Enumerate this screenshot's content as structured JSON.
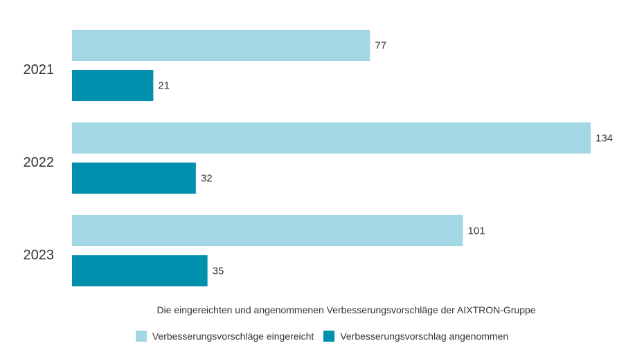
{
  "chart_data": {
    "type": "bar",
    "orientation": "horizontal",
    "categories": [
      "2021",
      "2022",
      "2023"
    ],
    "series": [
      {
        "name": "Verbesserungsvorschläge eingereicht",
        "values": [
          77,
          134,
          101
        ],
        "color": "#a3d7e3"
      },
      {
        "name": "Verbesserungsvorschlag angenommen",
        "values": [
          21,
          32,
          35
        ],
        "color": "#0090ad"
      }
    ],
    "title": "Die eingereichten und angenommenen Verbesserungsvorschläge der AIXTRON-Gruppe",
    "xlabel": "",
    "ylabel": "",
    "xlim": [
      0,
      134
    ],
    "grid": false,
    "legend_position": "bottom"
  }
}
